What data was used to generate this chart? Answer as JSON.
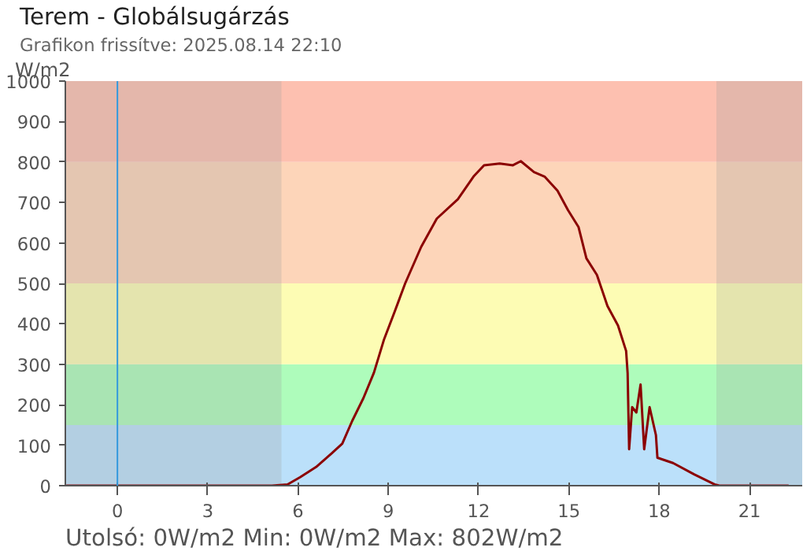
{
  "chart_data": {
    "type": "line",
    "title": "Terem - Globálsugárzás",
    "subtitle": "Grafikon frissítve: 2025.08.14 22:10",
    "ylabel": "W/m2",
    "annotations": [
      "Utolsó: 0W/m2  Min: 0W/m2  Max: 802W/m2"
    ],
    "x": [
      -1.7,
      5.13,
      5.65,
      6.07,
      6.6,
      7.12,
      7.47,
      7.8,
      8.17,
      8.52,
      8.86,
      9.21,
      9.56,
      10.09,
      10.61,
      11.31,
      11.83,
      12.18,
      12.7,
      13.14,
      13.4,
      13.84,
      14.19,
      14.62,
      14.97,
      15.32,
      15.58,
      15.93,
      16.28,
      16.63,
      16.9,
      16.95,
      17.0,
      17.1,
      17.24,
      17.38,
      17.5,
      17.68,
      17.89,
      17.94,
      18.46,
      19.16,
      19.84,
      20.0,
      22.3
    ],
    "series": [
      {
        "color": "#8b0000",
        "values": [
          0,
          0,
          3,
          21,
          46,
          80,
          104,
          160,
          216,
          279,
          362,
          430,
          500,
          590,
          660,
          708,
          764,
          792,
          796,
          792,
          802,
          775,
          764,
          729,
          681,
          639,
          562,
          521,
          444,
          396,
          333,
          278,
          90,
          194,
          181,
          250,
          90,
          194,
          125,
          69,
          56,
          28,
          3,
          0,
          0
        ]
      }
    ],
    "xlim": [
      -1.73,
      22.75
    ],
    "xticks": [
      0,
      3,
      6,
      9,
      12,
      15,
      18,
      21
    ],
    "ylim": [
      0,
      1000
    ],
    "yticks": [
      0,
      100,
      200,
      300,
      400,
      500,
      600,
      700,
      800,
      900,
      1000
    ],
    "bands": [
      {
        "axis": "y",
        "from": 0,
        "to": 150,
        "color": "#bbe0fa"
      },
      {
        "axis": "y",
        "from": 150,
        "to": 300,
        "color": "#aefcbb"
      },
      {
        "axis": "y",
        "from": 300,
        "to": 500,
        "color": "#fdfcb4"
      },
      {
        "axis": "y",
        "from": 500,
        "to": 800,
        "color": "#fdd5b9"
      },
      {
        "axis": "y",
        "from": 800,
        "to": 1000,
        "color": "#fdc0b0"
      },
      {
        "axis": "x",
        "from": -1.73,
        "to": 5.45,
        "color": "#9a9a9a"
      },
      {
        "axis": "x",
        "from": 19.9,
        "to": 22.75,
        "color": "#9a9a9a"
      }
    ],
    "ref_lines": [
      {
        "axis": "x",
        "value": 0,
        "color": "#3399dd"
      }
    ]
  }
}
